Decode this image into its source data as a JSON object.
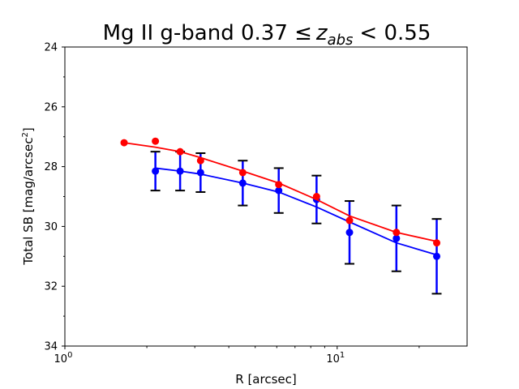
{
  "chart_data": {
    "type": "line",
    "title": {
      "prefix": "Mg II g-band 0.37 ≤",
      "z": "z",
      "z_sub": "abs",
      "suffix": "< 0.55"
    },
    "xlabel": "R [arcsec]",
    "ylabel": {
      "main": "Total SB [mag/arcsec",
      "sup": "2",
      "close": "]"
    },
    "xscale": "log",
    "xlim": [
      1,
      30
    ],
    "ylim": [
      34,
      24
    ],
    "y_inverted": true,
    "y_ticks": [
      24,
      26,
      28,
      30,
      32,
      34
    ],
    "y_tick_labels": [
      "24",
      "26",
      "28",
      "30",
      "32",
      "34"
    ],
    "x_tick_labels": [
      {
        "value": 1,
        "base": "10",
        "exp": "0"
      },
      {
        "value": 10,
        "base": "10",
        "exp": "1"
      }
    ],
    "series": [
      {
        "name": "blue",
        "color": "#0000ff",
        "markers": [
          {
            "x": 2.15,
            "y": 28.15,
            "err": 0.65
          },
          {
            "x": 2.65,
            "y": 28.15,
            "err": 0.65
          },
          {
            "x": 3.15,
            "y": 28.2,
            "err": 0.65
          },
          {
            "x": 4.5,
            "y": 28.55,
            "err": 0.75
          },
          {
            "x": 6.1,
            "y": 28.8,
            "err": 0.75
          },
          {
            "x": 8.4,
            "y": 29.1,
            "err": 0.8
          },
          {
            "x": 11.1,
            "y": 30.2,
            "err": 1.05
          },
          {
            "x": 16.5,
            "y": 30.4,
            "err": 1.1
          },
          {
            "x": 23.2,
            "y": 31.0,
            "err": 1.25
          }
        ],
        "fit_line": [
          {
            "x": 2.15,
            "y": 28.05
          },
          {
            "x": 2.65,
            "y": 28.15
          },
          {
            "x": 3.15,
            "y": 28.25
          },
          {
            "x": 4.5,
            "y": 28.55
          },
          {
            "x": 6.1,
            "y": 28.85
          },
          {
            "x": 8.4,
            "y": 29.35
          },
          {
            "x": 11.1,
            "y": 29.85
          },
          {
            "x": 16.5,
            "y": 30.55
          },
          {
            "x": 23.2,
            "y": 30.95
          }
        ]
      },
      {
        "name": "red",
        "color": "#ff0000",
        "markers": [
          {
            "x": 1.65,
            "y": 27.2
          },
          {
            "x": 2.15,
            "y": 27.15
          },
          {
            "x": 2.65,
            "y": 27.5
          },
          {
            "x": 3.15,
            "y": 27.8
          },
          {
            "x": 4.5,
            "y": 28.2
          },
          {
            "x": 6.1,
            "y": 28.6
          },
          {
            "x": 8.4,
            "y": 29.0
          },
          {
            "x": 11.1,
            "y": 29.8
          },
          {
            "x": 16.5,
            "y": 30.2
          },
          {
            "x": 23.2,
            "y": 30.55
          }
        ],
        "fit_line": [
          {
            "x": 1.65,
            "y": 27.2
          },
          {
            "x": 2.15,
            "y": 27.35
          },
          {
            "x": 2.65,
            "y": 27.5
          },
          {
            "x": 3.15,
            "y": 27.7
          },
          {
            "x": 4.5,
            "y": 28.15
          },
          {
            "x": 6.1,
            "y": 28.55
          },
          {
            "x": 8.4,
            "y": 29.1
          },
          {
            "x": 11.1,
            "y": 29.65
          },
          {
            "x": 16.5,
            "y": 30.2
          },
          {
            "x": 23.2,
            "y": 30.5
          }
        ]
      }
    ]
  }
}
